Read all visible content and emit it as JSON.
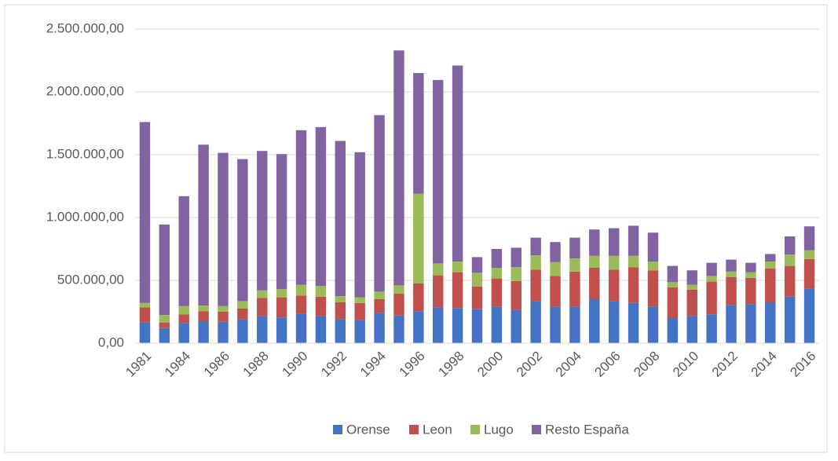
{
  "chart_data": {
    "type": "stacked-bar",
    "categories": [
      "1981",
      null,
      "1984",
      null,
      "1986",
      null,
      "1988",
      null,
      "1990",
      null,
      "1992",
      null,
      "1994",
      null,
      "1996",
      null,
      "1998",
      null,
      "2000",
      null,
      "2002",
      null,
      "2004",
      null,
      "2006",
      null,
      "2008",
      null,
      "2010",
      null,
      "2012",
      null,
      "2014",
      null,
      "2016"
    ],
    "series": [
      {
        "name": "Orense",
        "color": "#4472c4",
        "values": [
          165000,
          120000,
          160000,
          175000,
          170000,
          190000,
          215000,
          205000,
          235000,
          215000,
          190000,
          185000,
          240000,
          220000,
          255000,
          285000,
          280000,
          270000,
          290000,
          265000,
          335000,
          290000,
          290000,
          350000,
          335000,
          320000,
          290000,
          200000,
          215000,
          230000,
          305000,
          310000,
          325000,
          370000,
          435000
        ]
      },
      {
        "name": "Leon",
        "color": "#c0504d",
        "values": [
          120000,
          45000,
          70000,
          80000,
          80000,
          85000,
          145000,
          160000,
          145000,
          155000,
          135000,
          135000,
          110000,
          175000,
          220000,
          255000,
          285000,
          180000,
          225000,
          230000,
          250000,
          245000,
          280000,
          250000,
          250000,
          285000,
          290000,
          245000,
          210000,
          260000,
          220000,
          210000,
          270000,
          245000,
          235000
        ]
      },
      {
        "name": "Lugo",
        "color": "#9bbb59",
        "values": [
          35000,
          60000,
          65000,
          45000,
          45000,
          60000,
          60000,
          65000,
          85000,
          85000,
          50000,
          45000,
          60000,
          65000,
          715000,
          95000,
          85000,
          110000,
          85000,
          110000,
          115000,
          110000,
          105000,
          95000,
          110000,
          90000,
          70000,
          40000,
          40000,
          45000,
          45000,
          45000,
          55000,
          90000,
          70000
        ]
      },
      {
        "name": "Resto España",
        "color": "#8064a2",
        "values": [
          1440000,
          720000,
          875000,
          1280000,
          1220000,
          1130000,
          1110000,
          1075000,
          1230000,
          1265000,
          1235000,
          1155000,
          1405000,
          1870000,
          960000,
          1460000,
          1560000,
          125000,
          150000,
          155000,
          140000,
          160000,
          165000,
          210000,
          220000,
          240000,
          230000,
          130000,
          115000,
          105000,
          95000,
          75000,
          60000,
          145000,
          190000
        ]
      }
    ],
    "ylim": [
      0,
      2500000
    ],
    "yticks": [
      {
        "value": 0,
        "label": "0,00"
      },
      {
        "value": 500000,
        "label": "500.000,00"
      },
      {
        "value": 1000000,
        "label": "1.000.000,00"
      },
      {
        "value": 1500000,
        "label": "1.500.000,00"
      },
      {
        "value": 2000000,
        "label": "2.000.000,00"
      },
      {
        "value": 2500000,
        "label": "2.500.000,00"
      }
    ],
    "grid": true,
    "legend": "bottom"
  }
}
